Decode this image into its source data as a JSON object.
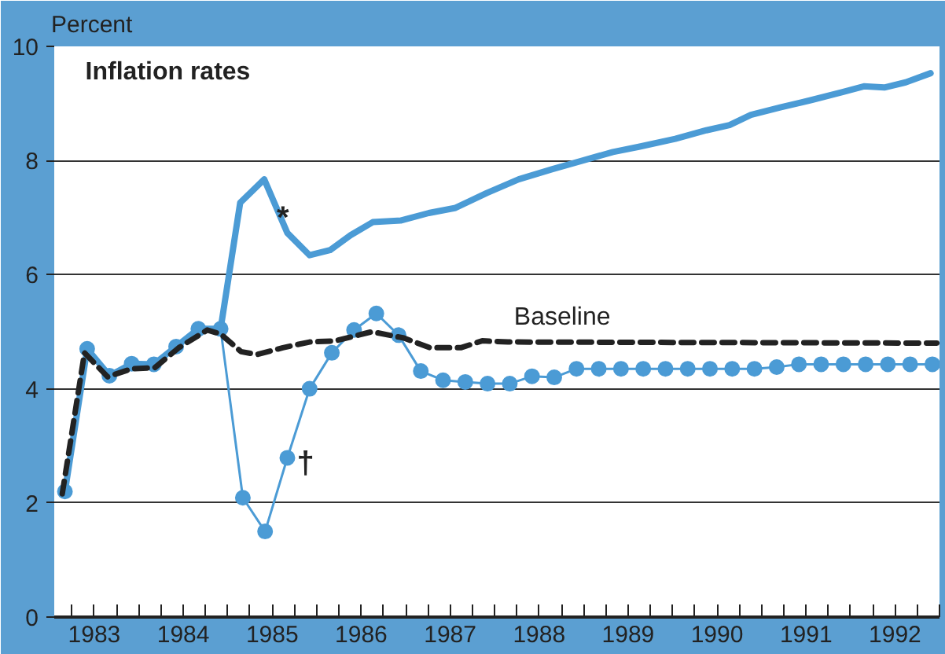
{
  "chart_data": {
    "type": "line",
    "title": "Inflation rates",
    "ylabel": "Percent",
    "xlim": [
      1983.05,
      1993.0
    ],
    "ylim": [
      0,
      10
    ],
    "yticks": [
      0,
      2,
      4,
      6,
      8,
      10
    ],
    "xticks": [
      {
        "value": 1983.25,
        "label": null
      },
      {
        "value": 1983.5,
        "label": "1983"
      },
      {
        "value": 1983.75,
        "label": null
      },
      {
        "value": 1984,
        "label": null
      },
      {
        "value": 1984.25,
        "label": null
      },
      {
        "value": 1984.5,
        "label": "1984"
      },
      {
        "value": 1984.75,
        "label": null
      },
      {
        "value": 1985,
        "label": null
      },
      {
        "value": 1985.25,
        "label": null
      },
      {
        "value": 1985.5,
        "label": "1985"
      },
      {
        "value": 1985.75,
        "label": null
      },
      {
        "value": 1986,
        "label": null
      },
      {
        "value": 1986.25,
        "label": null
      },
      {
        "value": 1986.5,
        "label": "1986"
      },
      {
        "value": 1986.75,
        "label": null
      },
      {
        "value": 1987,
        "label": null
      },
      {
        "value": 1987.25,
        "label": null
      },
      {
        "value": 1987.5,
        "label": "1987"
      },
      {
        "value": 1987.75,
        "label": null
      },
      {
        "value": 1988,
        "label": null
      },
      {
        "value": 1988.25,
        "label": null
      },
      {
        "value": 1988.5,
        "label": "1988"
      },
      {
        "value": 1988.75,
        "label": null
      },
      {
        "value": 1989,
        "label": null
      },
      {
        "value": 1989.25,
        "label": null
      },
      {
        "value": 1989.5,
        "label": "1989"
      },
      {
        "value": 1989.75,
        "label": null
      },
      {
        "value": 1990,
        "label": null
      },
      {
        "value": 1990.25,
        "label": null
      },
      {
        "value": 1990.5,
        "label": "1990"
      },
      {
        "value": 1990.75,
        "label": null
      },
      {
        "value": 1991,
        "label": null
      },
      {
        "value": 1991.25,
        "label": null
      },
      {
        "value": 1991.5,
        "label": "1991"
      },
      {
        "value": 1991.75,
        "label": null
      },
      {
        "value": 1992,
        "label": null
      },
      {
        "value": 1992.25,
        "label": null
      },
      {
        "value": 1992.5,
        "label": "1992"
      },
      {
        "value": 1992.75,
        "label": null
      },
      {
        "value": 1993,
        "label": null
      }
    ],
    "grid": "y",
    "series": [
      {
        "color": "#4b9bd5",
        "line_style": "solid",
        "marker": "none",
        "x": [
          1983.17,
          1983.42,
          1983.67,
          1983.92,
          1984.17,
          1984.42,
          1984.67,
          1984.92,
          1985.14,
          1985.41,
          1985.67,
          1985.92,
          1986.15,
          1986.38,
          1986.63,
          1986.95,
          1987.26,
          1987.56,
          1987.91,
          1988.27,
          1988.65,
          1988.97,
          1989.33,
          1989.62,
          1990.03,
          1990.38,
          1990.64,
          1990.88,
          1991.21,
          1991.56,
          1991.91,
          1992.15,
          1992.38,
          1992.62,
          1992.9
        ],
        "values": [
          2.2,
          4.7,
          4.23,
          4.44,
          4.43,
          4.74,
          5.05,
          5.05,
          7.26,
          7.67,
          6.73,
          6.34,
          6.43,
          6.69,
          6.92,
          6.95,
          7.08,
          7.17,
          7.43,
          7.67,
          7.85,
          7.99,
          8.15,
          8.24,
          8.38,
          8.53,
          8.62,
          8.8,
          8.93,
          9.06,
          9.2,
          9.3,
          9.28,
          9.37,
          9.53
        ]
      },
      {
        "color": "#4b9bd5",
        "line_style": "solid",
        "marker": "circle",
        "x": [
          1983.17,
          1983.42,
          1983.67,
          1983.92,
          1984.17,
          1984.42,
          1984.67,
          1984.92,
          1985.17,
          1985.42,
          1985.67,
          1985.92,
          1986.17,
          1986.42,
          1986.67,
          1986.92,
          1987.17,
          1987.42,
          1987.67,
          1987.92,
          1988.17,
          1988.42,
          1988.67,
          1988.92,
          1989.17,
          1989.42,
          1989.67,
          1989.92,
          1990.17,
          1990.42,
          1990.67,
          1990.92,
          1991.17,
          1991.42,
          1991.67,
          1991.92,
          1992.17,
          1992.42,
          1992.67,
          1992.92
        ],
        "values": [
          2.2,
          4.7,
          4.23,
          4.44,
          4.43,
          4.74,
          5.05,
          5.05,
          2.09,
          1.5,
          2.79,
          4.0,
          4.63,
          5.03,
          5.32,
          4.94,
          4.31,
          4.15,
          4.12,
          4.09,
          4.09,
          4.22,
          4.2,
          4.35,
          4.35,
          4.35,
          4.35,
          4.35,
          4.35,
          4.35,
          4.35,
          4.35,
          4.38,
          4.43,
          4.43,
          4.43,
          4.43,
          4.43,
          4.43,
          4.43
        ]
      },
      {
        "name": "Baseline",
        "color": "#222222",
        "line_style": "dashed",
        "marker": "none",
        "x": [
          1983.14,
          1983.39,
          1983.65,
          1983.92,
          1984.18,
          1984.45,
          1984.77,
          1984.92,
          1985.15,
          1985.33,
          1985.62,
          1985.92,
          1986.21,
          1986.62,
          1986.98,
          1987.27,
          1987.62,
          1987.86,
          1988.15,
          1992.97
        ],
        "values": [
          2.16,
          4.63,
          4.21,
          4.35,
          4.37,
          4.72,
          5.03,
          4.96,
          4.65,
          4.6,
          4.72,
          4.82,
          4.84,
          5.0,
          4.89,
          4.72,
          4.72,
          4.84,
          4.82,
          4.8
        ]
      }
    ],
    "annotations": [
      {
        "text": "*",
        "x": 1985.41,
        "y": 7.67
      },
      {
        "text": "†",
        "x": 1985.67,
        "y": 2.79
      }
    ]
  }
}
